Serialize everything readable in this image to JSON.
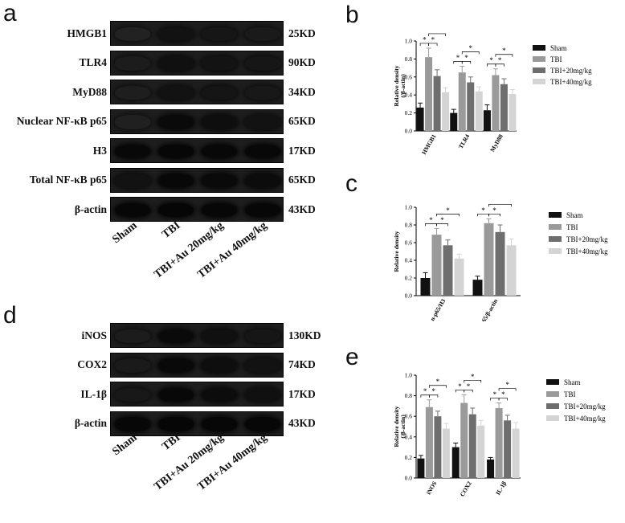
{
  "panel_labels": [
    "a",
    "b",
    "c",
    "d",
    "e"
  ],
  "blot_a": {
    "rows": [
      {
        "name": "HMGB1",
        "kd": "25KD",
        "intensity": [
          0.15,
          0.55,
          0.45,
          0.35
        ]
      },
      {
        "name": "TLR4",
        "kd": "90KD",
        "intensity": [
          0.3,
          0.6,
          0.52,
          0.45
        ]
      },
      {
        "name": "MyD88",
        "kd": "34KD",
        "intensity": [
          0.25,
          0.55,
          0.48,
          0.4
        ]
      },
      {
        "name": "Nuclear NF-κB p65",
        "kd": "65KD",
        "intensity": [
          0.2,
          0.75,
          0.65,
          0.55
        ]
      },
      {
        "name": "H3",
        "kd": "17KD",
        "intensity": [
          0.8,
          0.82,
          0.8,
          0.8
        ]
      },
      {
        "name": "Total NF-κB p65",
        "kd": "65KD",
        "intensity": [
          0.55,
          0.8,
          0.75,
          0.7
        ]
      },
      {
        "name": "β-actin",
        "kd": "43KD",
        "intensity": [
          0.82,
          0.84,
          0.82,
          0.82
        ]
      }
    ],
    "lanes": [
      "Sham",
      "TBI",
      "TBI+Au 20mg/kg",
      "TBI+Au 40mg/kg"
    ]
  },
  "blot_d": {
    "rows": [
      {
        "name": "iNOS",
        "kd": "130KD",
        "intensity": [
          0.3,
          0.75,
          0.6,
          0.45
        ]
      },
      {
        "name": "COX2",
        "kd": "74KD",
        "intensity": [
          0.35,
          0.78,
          0.65,
          0.55
        ]
      },
      {
        "name": "IL-1β",
        "kd": "17KD",
        "intensity": [
          0.4,
          0.8,
          0.7,
          0.6
        ]
      },
      {
        "name": "β-actin",
        "kd": "43KD",
        "intensity": [
          0.82,
          0.84,
          0.82,
          0.82
        ]
      }
    ],
    "lanes": [
      "Sham",
      "TBI",
      "TBI+Au 20mg/kg",
      "TBI+Au 40mg/kg"
    ]
  },
  "legend": [
    "Sham",
    "TBI",
    "TBI+20mg/kg",
    "TBI+40mg/kg"
  ],
  "colors": [
    "#111111",
    "#9a9a9a",
    "#6e6e6e",
    "#d4d4d4"
  ],
  "chart_data": [
    {
      "type": "bar",
      "title": "",
      "ylabel": "Relative density",
      "ylabel2": "(/β-actin)",
      "ylim": [
        0,
        1.0
      ],
      "yticks": [
        "0.0",
        "0.2",
        "0.4",
        "0.6",
        "0.8",
        "1.0"
      ],
      "categories": [
        "HMGB1",
        "TLR4",
        "MyD88"
      ],
      "series": [
        {
          "name": "Sham",
          "values": [
            0.26,
            0.2,
            0.23
          ],
          "err": [
            0.05,
            0.04,
            0.06
          ]
        },
        {
          "name": "TBI",
          "values": [
            0.82,
            0.65,
            0.62
          ],
          "err": [
            0.1,
            0.07,
            0.07
          ]
        },
        {
          "name": "TBI+20mg/kg",
          "values": [
            0.61,
            0.54,
            0.52
          ],
          "err": [
            0.07,
            0.06,
            0.06
          ]
        },
        {
          "name": "TBI+40mg/kg",
          "values": [
            0.43,
            0.44,
            0.41
          ],
          "err": [
            0.05,
            0.05,
            0.05
          ]
        }
      ],
      "sig": "*",
      "legend_position": "right"
    },
    {
      "type": "bar",
      "title": "",
      "ylabel": "Relative density",
      "ylabel2": "",
      "ylim": [
        0,
        1.0
      ],
      "yticks": [
        "0.0",
        "0.2",
        "0.4",
        "0.6",
        "0.8",
        "1.0"
      ],
      "categories": [
        "n-p65/H3",
        "t-p65/β-actin"
      ],
      "series": [
        {
          "name": "Sham",
          "values": [
            0.2,
            0.18
          ],
          "err": [
            0.06,
            0.04
          ]
        },
        {
          "name": "TBI",
          "values": [
            0.69,
            0.82
          ],
          "err": [
            0.07,
            0.05
          ]
        },
        {
          "name": "TBI+20mg/kg",
          "values": [
            0.57,
            0.72
          ],
          "err": [
            0.06,
            0.08
          ]
        },
        {
          "name": "TBI+40mg/kg",
          "values": [
            0.42,
            0.57
          ],
          "err": [
            0.05,
            0.07
          ]
        }
      ],
      "sig": "*",
      "legend_position": "right"
    },
    {
      "type": "bar",
      "title": "",
      "ylabel": "Relative density",
      "ylabel2": "(/β-actin)",
      "ylim": [
        0,
        1.0
      ],
      "yticks": [
        "0.0",
        "0.2",
        "0.4",
        "0.6",
        "0.8",
        "1.0"
      ],
      "categories": [
        "iNOS",
        "COX2",
        "IL-1β"
      ],
      "series": [
        {
          "name": "Sham",
          "values": [
            0.19,
            0.3,
            0.18
          ],
          "err": [
            0.03,
            0.04,
            0.02
          ]
        },
        {
          "name": "TBI",
          "values": [
            0.69,
            0.73,
            0.68
          ],
          "err": [
            0.07,
            0.08,
            0.05
          ]
        },
        {
          "name": "TBI+20mg/kg",
          "values": [
            0.6,
            0.62,
            0.56
          ],
          "err": [
            0.05,
            0.06,
            0.05
          ]
        },
        {
          "name": "TBI+40mg/kg",
          "values": [
            0.48,
            0.51,
            0.48
          ],
          "err": [
            0.05,
            0.05,
            0.06
          ]
        }
      ],
      "sig": "*",
      "legend_position": "right"
    }
  ]
}
